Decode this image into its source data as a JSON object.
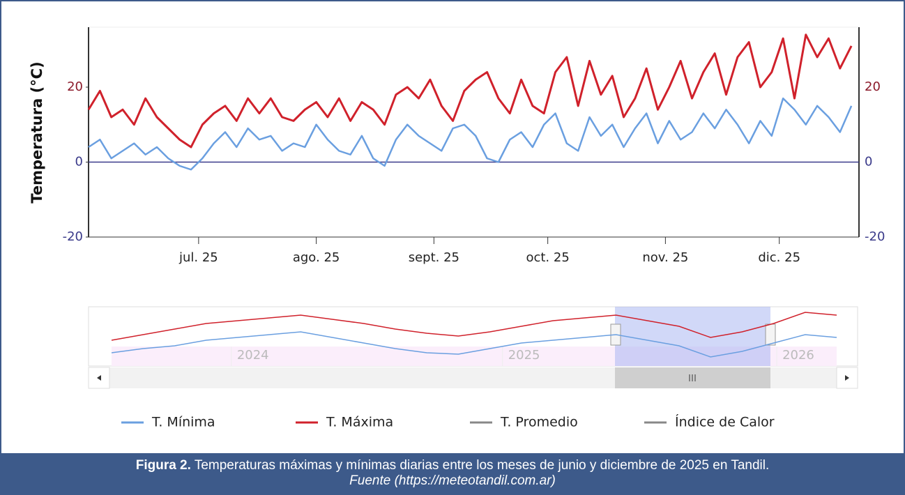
{
  "chart_data": {
    "type": "line",
    "y_label": "Temperatura (°C)",
    "x": [
      1,
      4,
      7,
      10,
      13,
      16,
      19,
      22,
      25,
      28,
      31,
      34,
      37,
      40,
      43,
      46,
      49,
      52,
      55,
      58,
      61,
      64,
      67,
      70,
      73,
      76,
      79,
      82,
      85,
      88,
      91,
      94,
      97,
      100,
      103,
      106,
      109,
      112,
      115,
      118,
      121,
      124,
      127,
      130,
      133,
      136,
      139,
      142,
      145,
      148,
      151,
      154,
      157,
      160,
      163,
      166,
      169,
      172,
      175,
      178,
      181,
      184,
      187,
      190,
      193,
      196,
      199,
      202
    ],
    "xlim": [
      1,
      204
    ],
    "xticks": [
      {
        "value": 30,
        "label": "jul. 25"
      },
      {
        "value": 61,
        "label": "ago. 25"
      },
      {
        "value": 92,
        "label": "sept. 25"
      },
      {
        "value": 122,
        "label": "oct. 25"
      },
      {
        "value": 153,
        "label": "nov. 25"
      },
      {
        "value": 183,
        "label": "dic. 25"
      }
    ],
    "ylim": [
      -20,
      36
    ],
    "yticks": [
      -20,
      0,
      20
    ],
    "series": [
      {
        "name": "T. Mínima",
        "color": "#6a9fe0",
        "values": [
          4,
          6,
          1,
          3,
          5,
          2,
          4,
          1,
          -1,
          -2,
          1,
          5,
          8,
          4,
          9,
          6,
          7,
          3,
          5,
          4,
          10,
          6,
          3,
          2,
          7,
          1,
          -1,
          6,
          10,
          7,
          5,
          3,
          9,
          10,
          7,
          1,
          0,
          6,
          8,
          4,
          10,
          13,
          5,
          3,
          12,
          7,
          10,
          4,
          9,
          13,
          5,
          11,
          6,
          8,
          13,
          9,
          14,
          10,
          5,
          11,
          7,
          17,
          14,
          10,
          15,
          12,
          8,
          15
        ]
      },
      {
        "name": "T. Máxima",
        "color": "#d0212b",
        "values": [
          14,
          19,
          12,
          14,
          10,
          17,
          12,
          9,
          6,
          4,
          10,
          13,
          15,
          11,
          17,
          13,
          17,
          12,
          11,
          14,
          16,
          12,
          17,
          11,
          16,
          14,
          10,
          18,
          20,
          17,
          22,
          15,
          11,
          19,
          22,
          24,
          17,
          13,
          22,
          15,
          13,
          24,
          28,
          15,
          27,
          18,
          23,
          12,
          17,
          25,
          14,
          20,
          27,
          17,
          24,
          29,
          18,
          28,
          32,
          20,
          24,
          33,
          17,
          34,
          28,
          33,
          25,
          31
        ]
      },
      {
        "name": "T. Promedio",
        "color": "#888888",
        "hidden": true
      },
      {
        "name": "Índice de Calor",
        "color": "#888888",
        "hidden": true
      }
    ],
    "navigator": {
      "xlim": [
        0,
        23
      ],
      "ylim": [
        -5,
        35
      ],
      "xticks": [
        {
          "value": 3.8,
          "label": "2024"
        },
        {
          "value": 12.4,
          "label": "2025"
        },
        {
          "value": 21.1,
          "label": "2026"
        }
      ],
      "max_values": [
        12,
        16,
        20,
        24,
        26,
        28,
        30,
        27,
        24,
        20,
        17,
        15,
        18,
        22,
        26,
        28,
        30,
        26,
        22,
        14,
        18,
        24,
        32,
        30
      ],
      "min_values": [
        3,
        6,
        8,
        12,
        14,
        16,
        18,
        14,
        10,
        6,
        3,
        2,
        6,
        10,
        12,
        14,
        16,
        12,
        8,
        0,
        4,
        10,
        16,
        14
      ]
    }
  },
  "caption": {
    "label": "Figura 2.",
    "text": "Temperaturas máximas y mínimas diarias entre los meses de junio y diciembre de 2025 en Tandil.",
    "source": "Fuente (https://meteotandil.com.ar)"
  }
}
